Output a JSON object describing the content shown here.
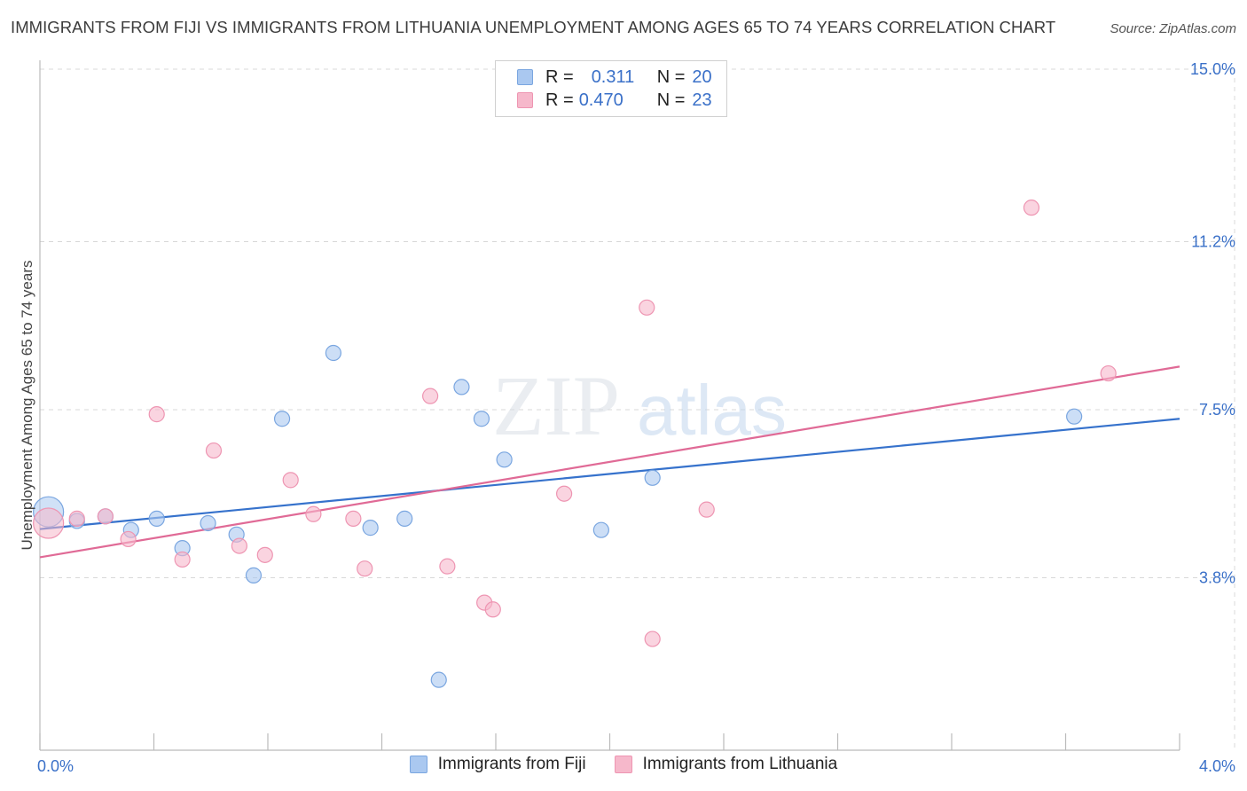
{
  "header": {
    "title": "IMMIGRANTS FROM FIJI VS IMMIGRANTS FROM LITHUANIA UNEMPLOYMENT AMONG AGES 65 TO 74 YEARS CORRELATION CHART",
    "source": "Source: ZipAtlas.com"
  },
  "watermark": {
    "zip": "ZIP",
    "atlas": "atlas"
  },
  "legend": {
    "r_label": "R =",
    "n_label": "N =",
    "series": [
      {
        "name": "Immigrants from Fiji",
        "r": "0.311",
        "n": "20"
      },
      {
        "name": "Immigrants from Lithuania",
        "r": "0.470",
        "n": "23"
      }
    ]
  },
  "colors": {
    "fiji_fill": "#aac8f0",
    "fiji_stroke": "#7aa6e0",
    "fiji_line": "#3672cc",
    "lith_fill": "#f6b8cb",
    "lith_stroke": "#ee95b2",
    "lith_line": "#e06a96",
    "grid": "#d8d8d8",
    "tick_text": "#3a70c8"
  },
  "chart_data": {
    "type": "scatter",
    "title": "IMMIGRANTS FROM FIJI VS IMMIGRANTS FROM LITHUANIA UNEMPLOYMENT AMONG AGES 65 TO 74 YEARS CORRELATION CHART",
    "xlabel": "",
    "ylabel": "Unemployment Among Ages 65 to 74 years",
    "xlim": [
      0,
      4.0
    ],
    "ylim": [
      0,
      15.0
    ],
    "x_tick_labels": [
      "0.0%",
      "4.0%"
    ],
    "y_ticks": [
      3.8,
      7.5,
      11.2,
      15.0
    ],
    "y_tick_labels": [
      "3.8%",
      "7.5%",
      "11.2%",
      "15.0%"
    ],
    "grid": true,
    "legend_position": "top-center",
    "series": [
      {
        "name": "Immigrants from Fiji",
        "points": [
          [
            0.03,
            5.25
          ],
          [
            0.13,
            5.05
          ],
          [
            0.23,
            5.15
          ],
          [
            0.32,
            4.85
          ],
          [
            0.41,
            5.1
          ],
          [
            0.5,
            4.45
          ],
          [
            0.59,
            5.0
          ],
          [
            0.69,
            4.75
          ],
          [
            0.75,
            3.85
          ],
          [
            0.85,
            7.3
          ],
          [
            1.03,
            8.75
          ],
          [
            1.16,
            4.9
          ],
          [
            1.28,
            5.1
          ],
          [
            1.4,
            1.55
          ],
          [
            1.48,
            8.0
          ],
          [
            1.55,
            7.3
          ],
          [
            1.63,
            6.4
          ],
          [
            1.97,
            4.85
          ],
          [
            2.15,
            6.0
          ],
          [
            3.63,
            7.35
          ]
        ],
        "trend": [
          [
            0.0,
            4.87
          ],
          [
            4.0,
            7.3
          ]
        ]
      },
      {
        "name": "Immigrants from Lithuania",
        "points": [
          [
            0.03,
            5.0
          ],
          [
            0.13,
            5.1
          ],
          [
            0.23,
            5.15
          ],
          [
            0.31,
            4.65
          ],
          [
            0.41,
            7.4
          ],
          [
            0.5,
            4.2
          ],
          [
            0.61,
            6.6
          ],
          [
            0.7,
            4.5
          ],
          [
            0.79,
            4.3
          ],
          [
            0.88,
            5.95
          ],
          [
            0.96,
            5.2
          ],
          [
            1.1,
            5.1
          ],
          [
            1.14,
            4.0
          ],
          [
            1.37,
            7.8
          ],
          [
            1.43,
            4.05
          ],
          [
            1.56,
            3.25
          ],
          [
            1.59,
            3.1
          ],
          [
            1.84,
            5.65
          ],
          [
            2.13,
            9.75
          ],
          [
            2.15,
            2.45
          ],
          [
            2.34,
            5.3
          ],
          [
            3.48,
            11.95
          ],
          [
            3.75,
            8.3
          ]
        ],
        "trend": [
          [
            0.0,
            4.25
          ],
          [
            4.0,
            8.45
          ]
        ]
      }
    ]
  }
}
